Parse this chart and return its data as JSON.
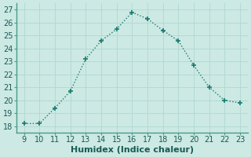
{
  "x": [
    9,
    10,
    11,
    12,
    13,
    14,
    15,
    16,
    17,
    18,
    19,
    20,
    21,
    22,
    23
  ],
  "y": [
    18.2,
    18.2,
    19.4,
    20.7,
    23.2,
    24.6,
    25.5,
    26.8,
    26.3,
    25.4,
    24.6,
    22.7,
    21.0,
    20.0,
    19.8
  ],
  "line_color": "#1a7a6e",
  "marker": "+",
  "marker_size": 5,
  "marker_linewidth": 1.2,
  "line_width": 1.0,
  "linestyle": "dotted",
  "xlabel": "Humidex (Indice chaleur)",
  "xlabel_fontsize": 8,
  "tick_fontsize": 7,
  "xlim": [
    8.5,
    23.5
  ],
  "ylim": [
    17.5,
    27.5
  ],
  "yticks": [
    18,
    19,
    20,
    21,
    22,
    23,
    24,
    25,
    26,
    27
  ],
  "xticks": [
    9,
    10,
    11,
    12,
    13,
    14,
    15,
    16,
    17,
    18,
    19,
    20,
    21,
    22,
    23
  ],
  "background_color": "#cce9e4",
  "grid_color": "#b0d8d0",
  "grid_linewidth": 0.6,
  "spine_color": "#4a9a8a",
  "spine_linewidth": 1.0
}
